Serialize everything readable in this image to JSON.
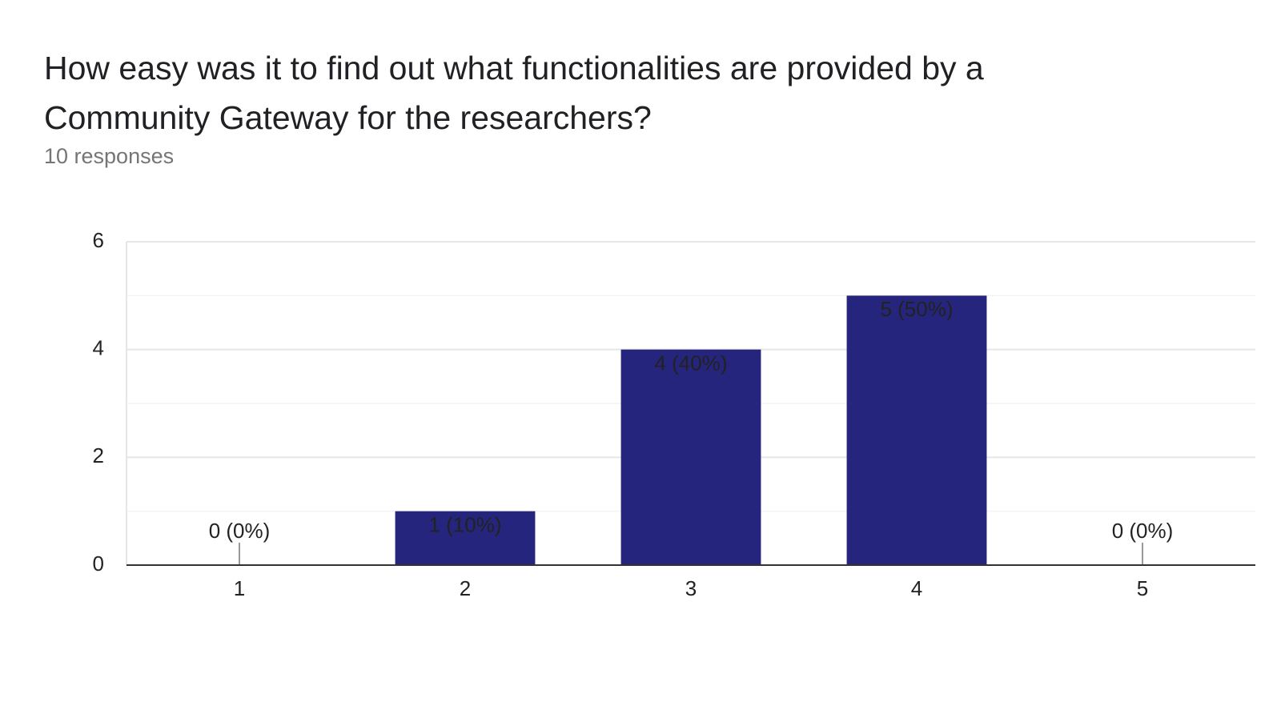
{
  "chart_data": {
    "type": "bar",
    "title": "How easy was it to find out what functionalities are provided by a Community Gateway for the researchers?",
    "subtitle": "10 responses",
    "categories": [
      "1",
      "2",
      "3",
      "4",
      "5"
    ],
    "values": [
      0,
      1,
      4,
      5,
      0
    ],
    "value_labels": [
      "0 (0%)",
      "1 (10%)",
      "4 (40%)",
      "5 (50%)",
      "0 (0%)"
    ],
    "color": "#25257d",
    "ylim": [
      0,
      6
    ],
    "yticks": [
      0,
      2,
      4,
      6
    ],
    "grid": true
  }
}
